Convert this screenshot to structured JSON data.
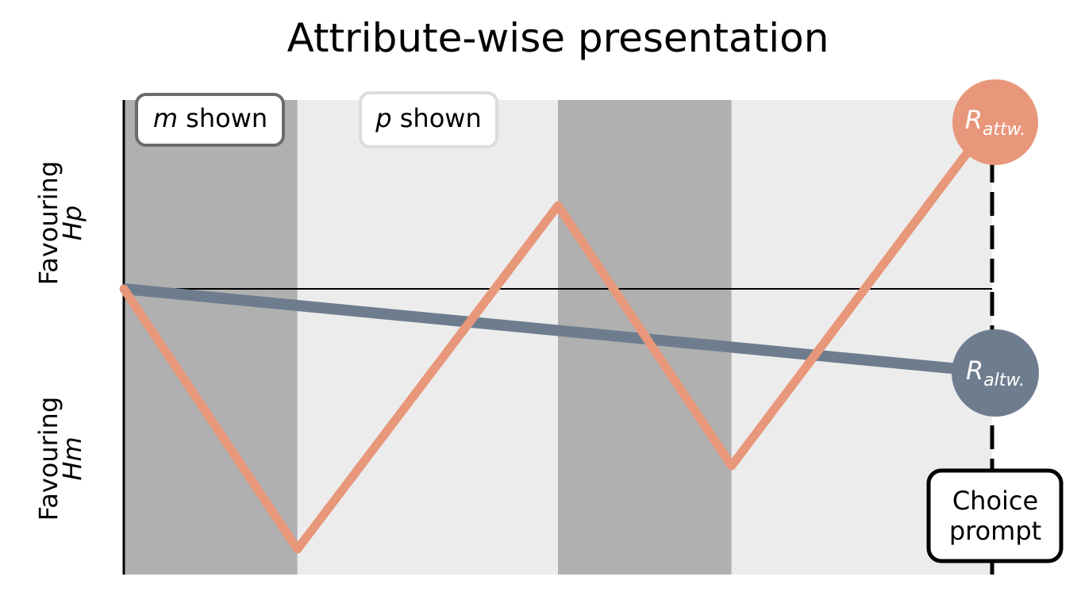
{
  "title": "Attribute-wise presentation",
  "y_axis": {
    "upper_label": {
      "text": "Favouring",
      "hypothesis": "Hp"
    },
    "lower_label": {
      "text": "Favouring",
      "hypothesis": "Hm"
    }
  },
  "legend": {
    "m_shown": {
      "symbol": "m",
      "text": " shown",
      "fill": "#b0b0b0"
    },
    "p_shown": {
      "symbol": "p",
      "text": " shown",
      "fill": "#ececec"
    }
  },
  "endpoints": {
    "attribute_wise": {
      "symbol": "R",
      "subscript": "attw.",
      "color": "#e8977a"
    },
    "alternative_wise": {
      "symbol": "R",
      "subscript": "altw.",
      "color": "#6e7d8e"
    }
  },
  "choice_prompt": {
    "line1": "Choice",
    "line2": "prompt"
  },
  "colors": {
    "m_band": "#b0b0b0",
    "p_band": "#ececec",
    "attribute_wise_line": "#e8977a",
    "alternative_wise_line": "#6e7d8e",
    "axis": "#000000"
  },
  "bands": [
    {
      "type": "m",
      "start": 0,
      "end": 1
    },
    {
      "type": "p",
      "start": 1,
      "end": 2.5
    },
    {
      "type": "m",
      "start": 2.5,
      "end": 3.5
    },
    {
      "type": "p",
      "start": 3.5,
      "end": 5
    }
  ],
  "x_range": [
    0,
    5
  ],
  "y_range": [
    -1,
    1
  ],
  "attribute_wise_path": [
    {
      "x": 0,
      "y": 0
    },
    {
      "x": 1,
      "y": -1
    },
    {
      "x": 2.5,
      "y": 0.32
    },
    {
      "x": 3.5,
      "y": -0.68
    },
    {
      "x": 5,
      "y": 0.65
    }
  ],
  "alternative_wise_path": [
    {
      "x": 0,
      "y": 0
    },
    {
      "x": 5,
      "y": -0.32
    }
  ]
}
